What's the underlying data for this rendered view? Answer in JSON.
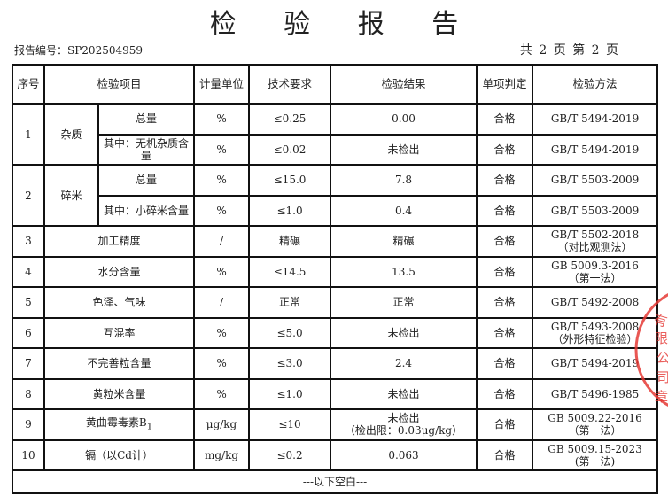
{
  "title": "检 验 报 告",
  "report_no": "报告编号：SP202504959",
  "pages": "共 2 页 第 2 页",
  "headers": [
    "序号",
    "检验项目",
    "计量单位",
    "技术要求",
    "检验结果",
    "单项判定",
    "检验方法"
  ],
  "rows": [
    {
      "no": "1",
      "group": "杂质",
      "item": "总量",
      "unit": "%",
      "req": "≤0.25",
      "result": "0.00",
      "verdict": "合格",
      "method": "GB/T 5494-2019"
    },
    {
      "item": "其中：无机杂质含量",
      "unit": "%",
      "req": "≤0.02",
      "result": "未检出",
      "verdict": "合格",
      "method": "GB/T 5494-2019"
    },
    {
      "no": "2",
      "group": "碎米",
      "item": "总量",
      "unit": "%",
      "req": "≤15.0",
      "result": "7.8",
      "verdict": "合格",
      "method": "GB/T 5503-2009"
    },
    {
      "item": "其中：小碎米含量",
      "unit": "%",
      "req": "≤1.0",
      "result": "0.4",
      "verdict": "合格",
      "method": "GB/T 5503-2009"
    },
    {
      "no": "3",
      "item": "加工精度",
      "unit": "/",
      "req": "精碾",
      "result": "精碾",
      "verdict": "合格",
      "method": "GB/T 5502-2018",
      "method2": "（对比观测法）"
    },
    {
      "no": "4",
      "item": "水分含量",
      "unit": "%",
      "req": "≤14.5",
      "result": "13.5",
      "verdict": "合格",
      "method": "GB 5009.3-2016",
      "method2": "（第一法）"
    },
    {
      "no": "5",
      "item": "色泽、气味",
      "unit": "/",
      "req": "正常",
      "result": "正常",
      "verdict": "合格",
      "method": "GB/T 5492-2008"
    },
    {
      "no": "6",
      "item": "互混率",
      "unit": "%",
      "req": "≤5.0",
      "result": "未检出",
      "verdict": "合格",
      "method": "GB/T 5493-2008",
      "method2": "（外形特征检验）"
    },
    {
      "no": "7",
      "item": "不完善粒含量",
      "unit": "%",
      "req": "≤3.0",
      "result": "2.4",
      "verdict": "合格",
      "method": "GB/T 5494-2019"
    },
    {
      "no": "8",
      "item": "黄粒米含量",
      "unit": "%",
      "req": "≤1.0",
      "result": "未检出",
      "verdict": "合格",
      "method": "GB/T 5496-1985"
    },
    {
      "no": "9",
      "item": "黄曲霉毒素B",
      "item_sub": "1",
      "unit": "μg/kg",
      "req": "≤10",
      "result": "未检出",
      "result2": "（检出限：0.03μg/kg）",
      "verdict": "合格",
      "method": "GB 5009.22-2016",
      "method2": "（第一法）"
    },
    {
      "no": "10",
      "item": "镉（以Cd计）",
      "unit": "mg/kg",
      "req": "≤0.2",
      "result": "0.063",
      "verdict": "合格",
      "method": "GB 5009.15-2023",
      "method2": "(第一法)"
    }
  ],
  "footer": "---以下空白---",
  "stamp": {
    "text": "有限公司 章",
    "color": "#e53935"
  }
}
